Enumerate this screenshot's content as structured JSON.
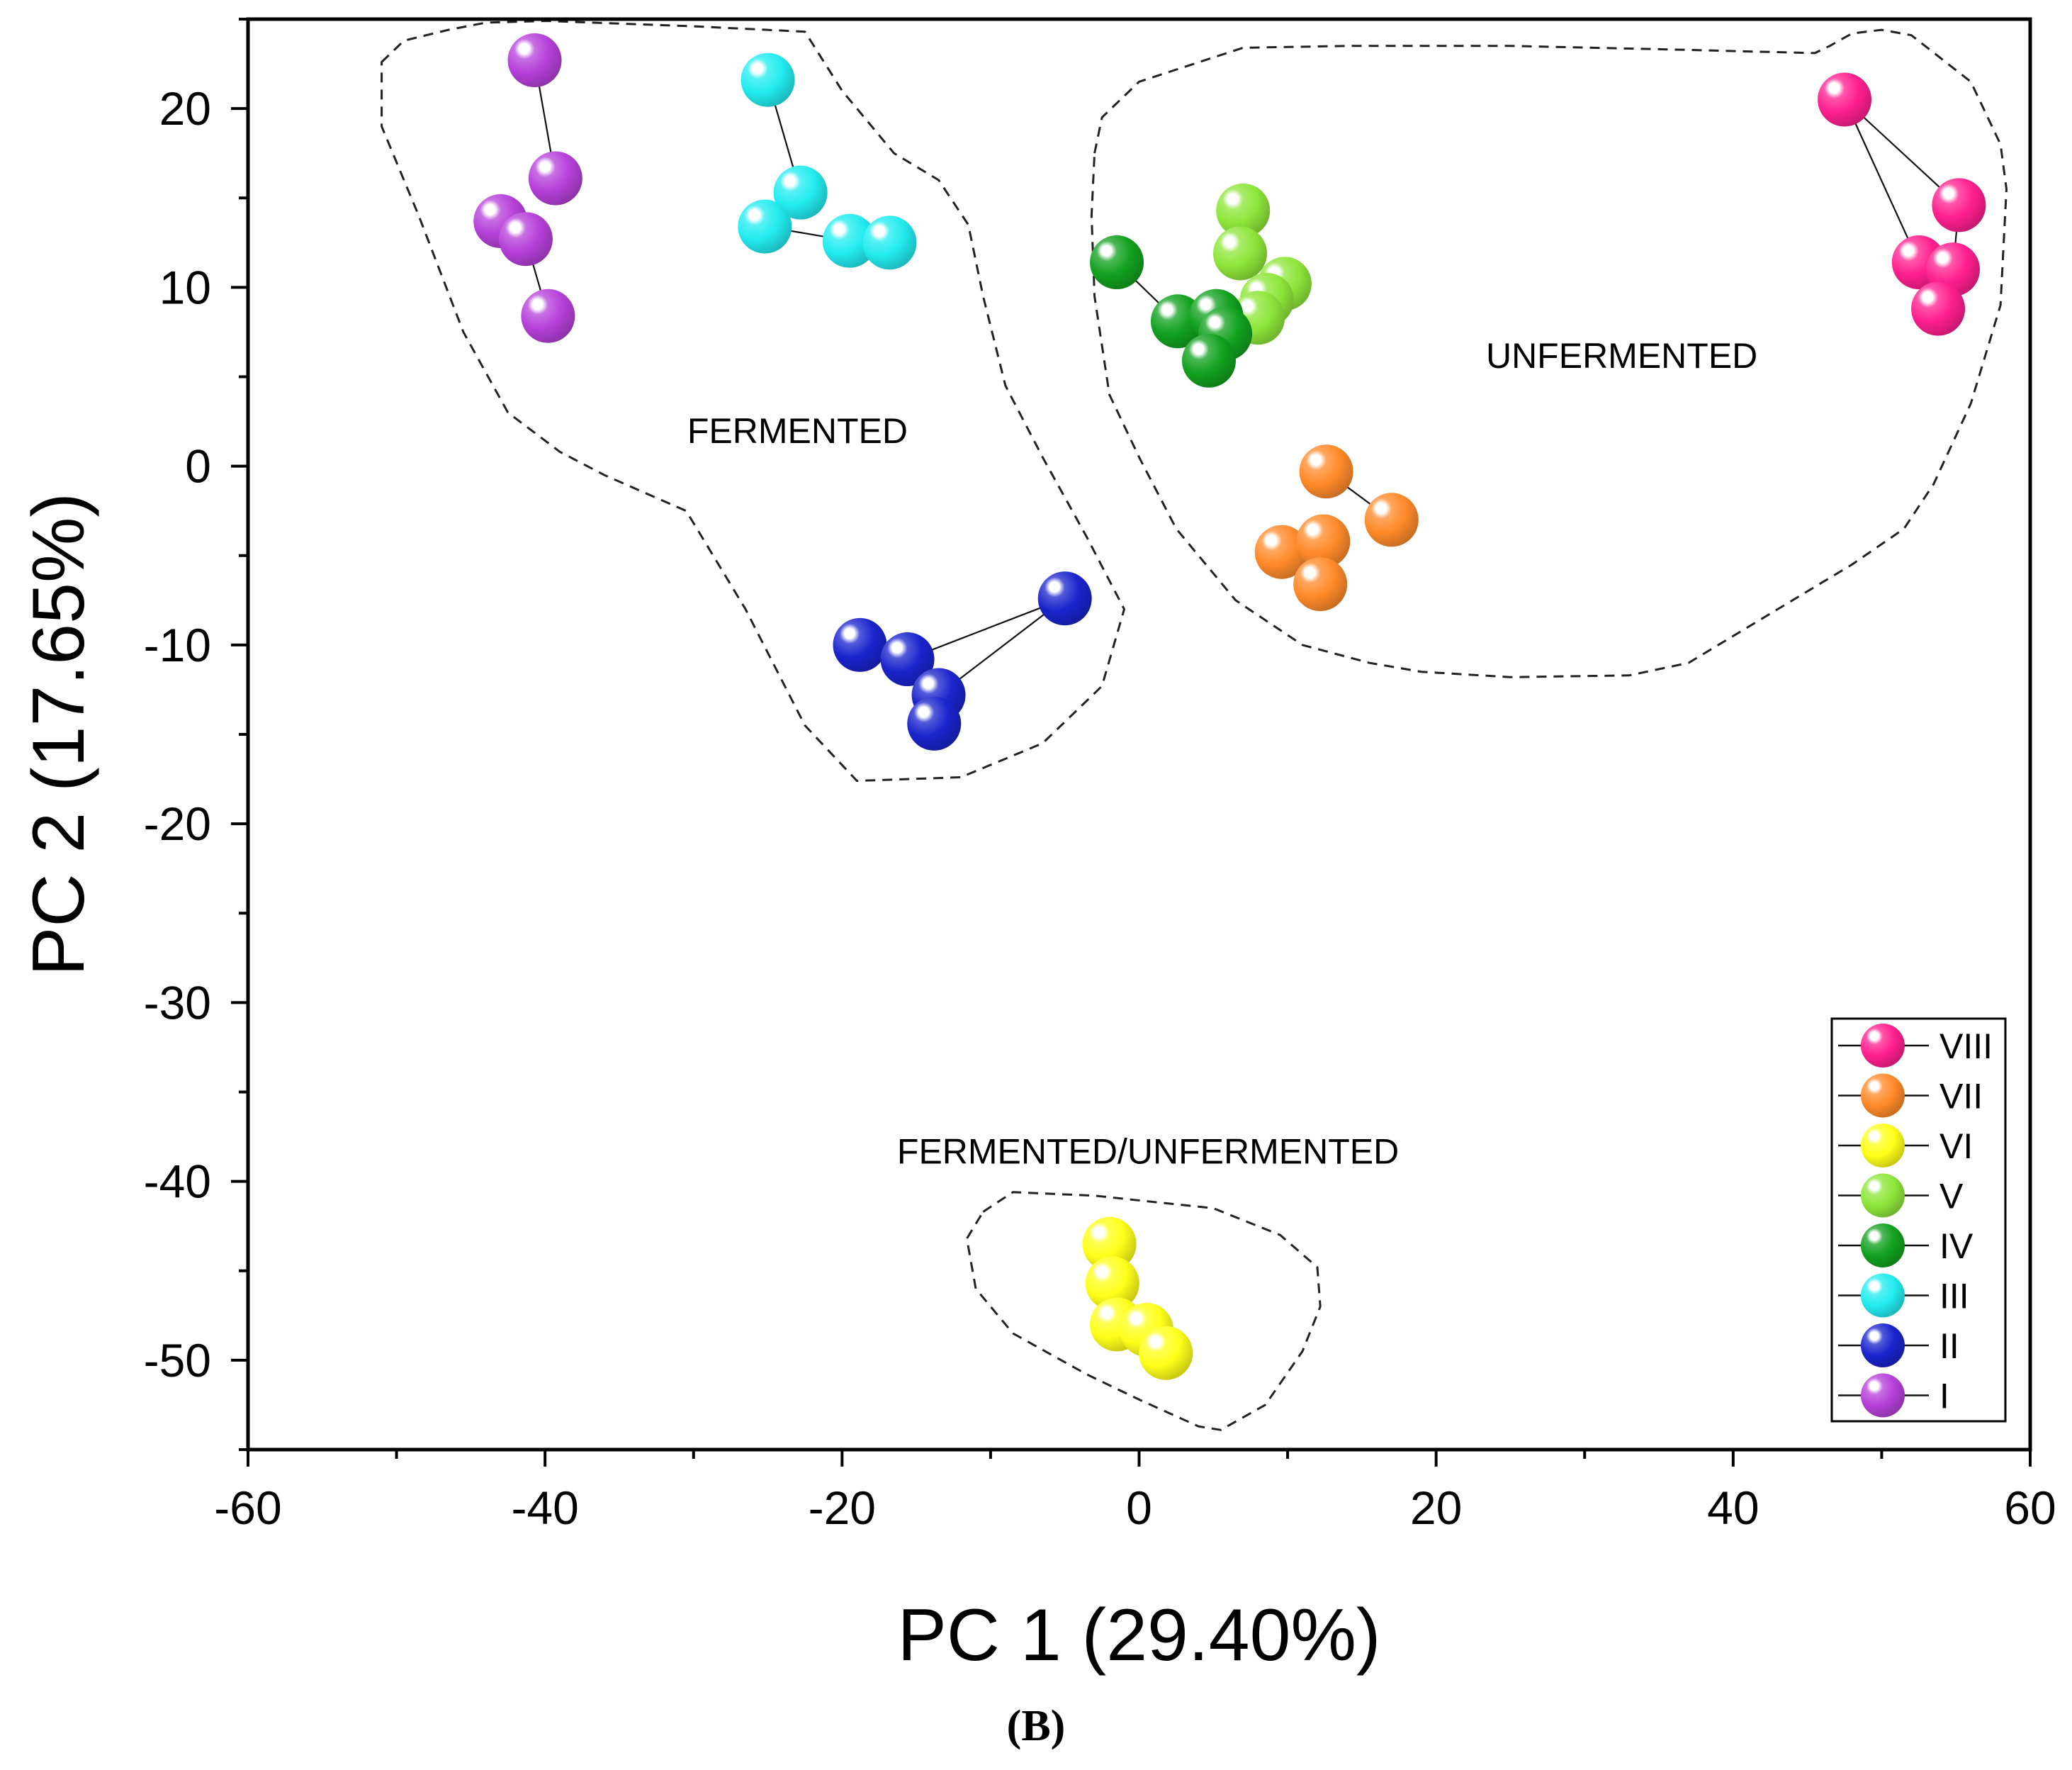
{
  "chart_data": {
    "type": "scatter",
    "xlabel": "PC 1 (29.40%)",
    "ylabel": "PC 2 (17.65%)",
    "xlim": [
      -60,
      60
    ],
    "ylim": [
      -55,
      25
    ],
    "xticks": [
      -60,
      -40,
      -20,
      0,
      20,
      40,
      60
    ],
    "yticks": [
      -50,
      -40,
      -30,
      -20,
      -10,
      0,
      10,
      20
    ],
    "grid": false,
    "legend_position": "bottom-right",
    "panel_label": "(B)",
    "annotations": [
      {
        "text": "FERMENTED",
        "x": -23,
        "y": 2
      },
      {
        "text": "UNFERMENTED",
        "x": 32.5,
        "y": 6.2
      },
      {
        "text": "FERMENTED/UNFERMENTED",
        "x": 0.6,
        "y": -38.3
      }
    ],
    "series": [
      {
        "name": "VIII",
        "color": "#ff1f8f",
        "points": [
          [
            47.5,
            20.5
          ],
          [
            55.2,
            14.6
          ],
          [
            52.5,
            11.4
          ],
          [
            54.8,
            11.0
          ],
          [
            53.8,
            8.8
          ]
        ],
        "links": [
          [
            0,
            1
          ],
          [
            0,
            2
          ],
          [
            2,
            4
          ],
          [
            1,
            3
          ]
        ]
      },
      {
        "name": "VII",
        "color": "#ff8a2a",
        "points": [
          [
            12.6,
            -0.3
          ],
          [
            17.0,
            -3.0
          ],
          [
            9.6,
            -4.8
          ],
          [
            12.4,
            -4.2
          ],
          [
            12.2,
            -6.6
          ]
        ],
        "links": [
          [
            0,
            1
          ],
          [
            3,
            4
          ],
          [
            2,
            3
          ]
        ]
      },
      {
        "name": "VI",
        "color": "#ffff1a",
        "points": [
          [
            -2.0,
            -43.5
          ],
          [
            -1.8,
            -45.7
          ],
          [
            -1.5,
            -48.0
          ],
          [
            0.5,
            -48.3
          ],
          [
            1.8,
            -49.6
          ]
        ],
        "links": [
          [
            0,
            1
          ],
          [
            1,
            2
          ],
          [
            3,
            4
          ]
        ]
      },
      {
        "name": "V",
        "color": "#8ee63a",
        "points": [
          [
            7.0,
            14.3
          ],
          [
            6.8,
            11.9
          ],
          [
            9.8,
            10.2
          ],
          [
            8.6,
            9.3
          ],
          [
            8.0,
            8.3
          ]
        ],
        "links": [
          [
            0,
            1
          ],
          [
            1,
            3
          ],
          [
            2,
            3
          ]
        ]
      },
      {
        "name": "IV",
        "color": "#12a11f",
        "points": [
          [
            -1.5,
            11.4
          ],
          [
            2.6,
            8.1
          ],
          [
            5.2,
            8.4
          ],
          [
            5.8,
            7.4
          ],
          [
            4.7,
            5.9
          ]
        ],
        "links": [
          [
            0,
            1
          ],
          [
            1,
            2
          ],
          [
            3,
            4
          ]
        ]
      },
      {
        "name": "III",
        "color": "#22ecf0",
        "points": [
          [
            -25.0,
            21.6
          ],
          [
            -22.8,
            15.3
          ],
          [
            -25.2,
            13.4
          ],
          [
            -19.5,
            12.6
          ],
          [
            -16.8,
            12.5
          ]
        ],
        "links": [
          [
            0,
            1
          ],
          [
            1,
            2
          ],
          [
            2,
            3
          ]
        ]
      },
      {
        "name": "II",
        "color": "#1a24cc",
        "points": [
          [
            -5.0,
            -7.4
          ],
          [
            -18.8,
            -10.0
          ],
          [
            -15.6,
            -10.8
          ],
          [
            -13.5,
            -12.8
          ],
          [
            -13.8,
            -14.4
          ]
        ],
        "links": [
          [
            0,
            2
          ],
          [
            0,
            3
          ],
          [
            1,
            2
          ],
          [
            3,
            4
          ]
        ]
      },
      {
        "name": "I",
        "color": "#b640d9",
        "points": [
          [
            -40.7,
            22.7
          ],
          [
            -39.3,
            16.1
          ],
          [
            -43.0,
            13.7
          ],
          [
            -41.3,
            12.7
          ],
          [
            -39.8,
            8.4
          ]
        ],
        "links": [
          [
            0,
            1
          ],
          [
            2,
            3
          ],
          [
            3,
            4
          ]
        ]
      }
    ],
    "regions": [
      {
        "name": "fermented-region",
        "points": [
          [
            -51.0,
            22.6
          ],
          [
            -49.5,
            23.8
          ],
          [
            -46.5,
            24.4
          ],
          [
            -44,
            24.8
          ],
          [
            -40,
            24.9
          ],
          [
            -30,
            24.6
          ],
          [
            -22.5,
            24.3
          ],
          [
            -20,
            21.0
          ],
          [
            -16.5,
            17.5
          ],
          [
            -13.5,
            16.0
          ],
          [
            -11.5,
            13.5
          ],
          [
            -10.5,
            9.5
          ],
          [
            -9,
            4.5
          ],
          [
            -6.5,
            0.5
          ],
          [
            -3.5,
            -4.0
          ],
          [
            -1,
            -8.0
          ],
          [
            -2.5,
            -12.3
          ],
          [
            -6.5,
            -15.5
          ],
          [
            -12,
            -17.4
          ],
          [
            -19,
            -17.6
          ],
          [
            -22.5,
            -14.5
          ],
          [
            -26.5,
            -8.0
          ],
          [
            -30.5,
            -2.5
          ],
          [
            -36,
            -0.5
          ],
          [
            -39,
            0.8
          ],
          [
            -42.5,
            3.0
          ],
          [
            -45.5,
            7.5
          ],
          [
            -48.5,
            14.0
          ],
          [
            -51.0,
            19.0
          ]
        ]
      },
      {
        "name": "unfermented-region",
        "points": [
          [
            -3,
            17.5
          ],
          [
            -2.5,
            19.5
          ],
          [
            0,
            21.5
          ],
          [
            7,
            23.4
          ],
          [
            14,
            23.5
          ],
          [
            25,
            23.5
          ],
          [
            36,
            23.3
          ],
          [
            45.5,
            23.1
          ],
          [
            46.5,
            23.5
          ],
          [
            48,
            24.2
          ],
          [
            50,
            24.4
          ],
          [
            52,
            24.1
          ],
          [
            56,
            21.5
          ],
          [
            58,
            18.0
          ],
          [
            58.4,
            15.5
          ],
          [
            58,
            9.0
          ],
          [
            56,
            3.5
          ],
          [
            53.5,
            -1.0
          ],
          [
            51.5,
            -3.5
          ],
          [
            48,
            -5.5
          ],
          [
            43,
            -8.0
          ],
          [
            37,
            -11.0
          ],
          [
            33,
            -11.7
          ],
          [
            25,
            -11.8
          ],
          [
            19,
            -11.5
          ],
          [
            15.5,
            -11.0
          ],
          [
            11,
            -10.0
          ],
          [
            6.5,
            -7.5
          ],
          [
            2.5,
            -3.5
          ],
          [
            0,
            0.5
          ],
          [
            -2.0,
            4.0
          ],
          [
            -3,
            9.5
          ],
          [
            -3.2,
            14.0
          ]
        ]
      },
      {
        "name": "fermented-unfermented-region",
        "points": [
          [
            -10.5,
            -41.7
          ],
          [
            -8.5,
            -40.6
          ],
          [
            -3,
            -40.8
          ],
          [
            5,
            -41.5
          ],
          [
            9.5,
            -43.0
          ],
          [
            12,
            -44.8
          ],
          [
            12.2,
            -47.0
          ],
          [
            11,
            -49.5
          ],
          [
            8.5,
            -52.5
          ],
          [
            5.5,
            -53.9
          ],
          [
            4,
            -53.7
          ],
          [
            0,
            -52.2
          ],
          [
            -3.5,
            -50.8
          ],
          [
            -8.5,
            -48.5
          ],
          [
            -11,
            -46.0
          ],
          [
            -11.6,
            -43.2
          ]
        ]
      }
    ]
  }
}
